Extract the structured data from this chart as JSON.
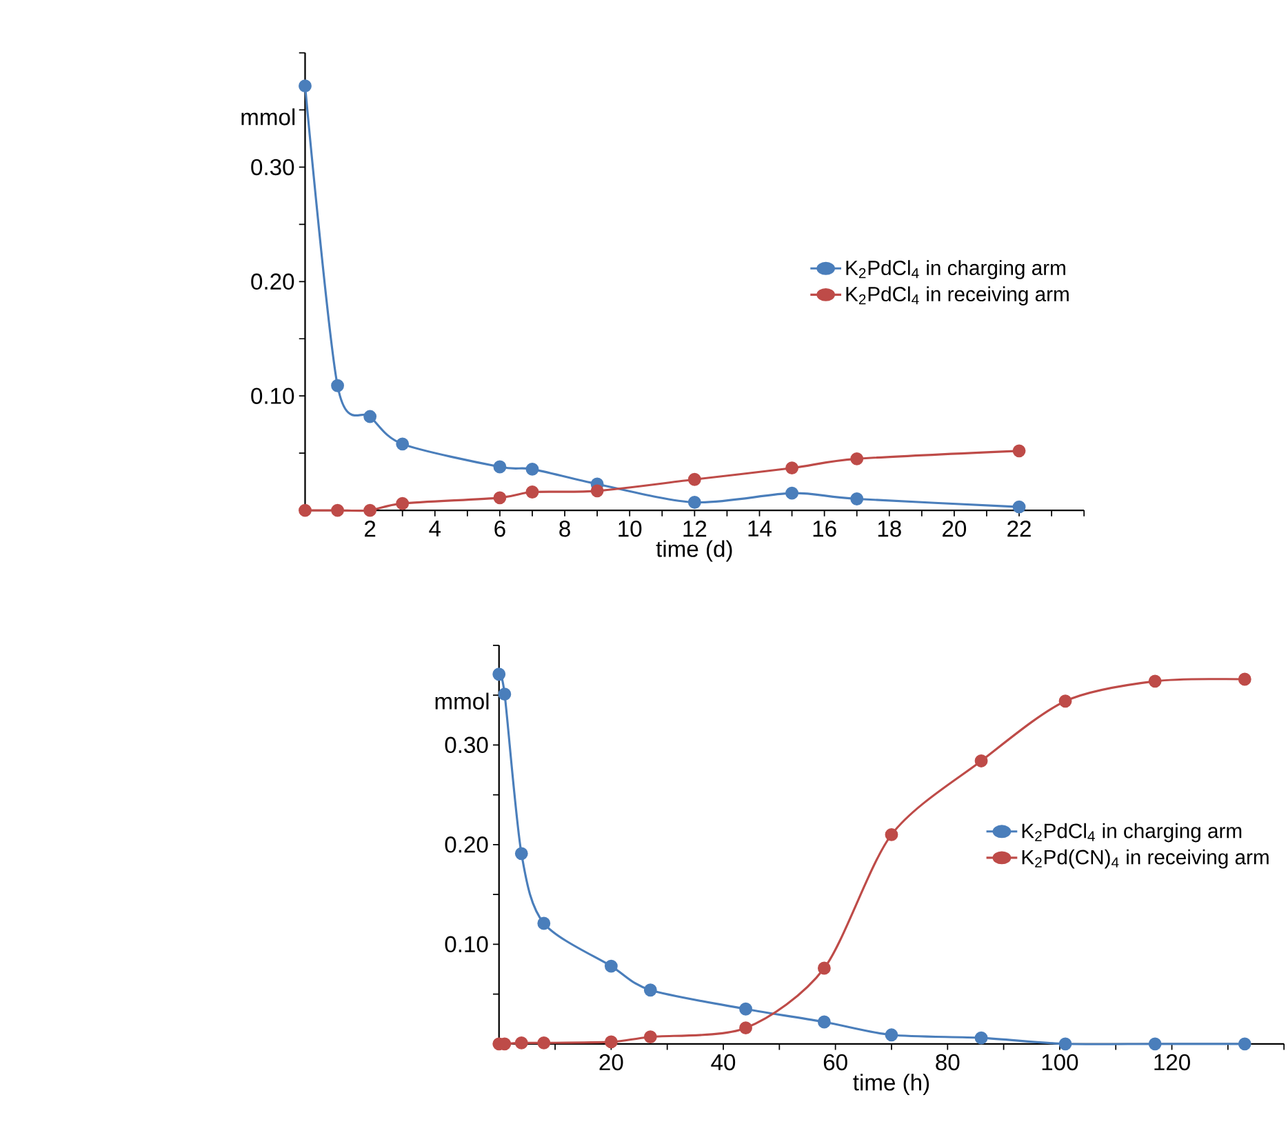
{
  "chart_data": [
    {
      "type": "line",
      "xlabel": "time (d)",
      "ylabel": "mmol",
      "marker": "circle",
      "line_style": "solid",
      "legend": "right",
      "xlim": [
        0,
        24
      ],
      "ylim": [
        0,
        0.4
      ],
      "xticks": [
        {
          "value": 0,
          "label": null
        },
        {
          "value": 1,
          "label": null
        },
        2,
        {
          "value": 3,
          "label": null
        },
        4,
        {
          "value": 5,
          "label": null
        },
        6,
        {
          "value": 7,
          "label": null
        },
        8,
        {
          "value": 9,
          "label": null
        },
        10,
        {
          "value": 11,
          "label": null
        },
        12,
        {
          "value": 13,
          "label": null
        },
        14,
        {
          "value": 15,
          "label": null
        },
        16,
        {
          "value": 17,
          "label": null
        },
        18,
        {
          "value": 19,
          "label": null
        },
        20,
        {
          "value": 21,
          "label": null
        },
        22,
        {
          "value": 23,
          "label": null
        },
        {
          "value": 24,
          "label": null
        }
      ],
      "yticks": [
        {
          "value": 0,
          "label": null
        },
        {
          "value": 0.05,
          "label": null
        },
        {
          "value": 0.1,
          "label": "0.10"
        },
        {
          "value": 0.15,
          "label": null
        },
        {
          "value": 0.2,
          "label": "0.20"
        },
        {
          "value": 0.25,
          "label": null
        },
        {
          "value": 0.3,
          "label": "0.30"
        },
        {
          "value": 0.35,
          "label": null
        },
        {
          "value": 0.4,
          "label": null
        }
      ],
      "x": [
        0,
        1,
        2,
        3,
        6,
        7,
        9,
        12,
        15,
        17,
        22
      ],
      "series": [
        {
          "name": "K$_{2}$PdCl$_{4}$ in charging arm",
          "color": "#4a7ebb",
          "values": [
            0.371,
            0.109,
            0.082,
            0.058,
            0.038,
            0.036,
            0.023,
            0.007,
            0.015,
            0.01,
            0.003
          ]
        },
        {
          "name": "K$_{2}$PdCl$_{4}$ in receiving arm",
          "color": "#be4b48",
          "values": [
            0,
            0,
            0,
            0.006,
            0.011,
            0.016,
            0.017,
            0.027,
            0.037,
            0.045,
            0.052
          ]
        }
      ]
    },
    {
      "type": "line",
      "xlabel": "time (h)",
      "ylabel": "mmol",
      "marker": "circle",
      "line_style": "solid",
      "legend": "right",
      "xlim": [
        0,
        140
      ],
      "ylim": [
        0,
        0.4
      ],
      "xticks": [
        {
          "value": 0,
          "label": null
        },
        {
          "value": 10,
          "label": null
        },
        20,
        {
          "value": 30,
          "label": null
        },
        40,
        {
          "value": 50,
          "label": null
        },
        60,
        {
          "value": 70,
          "label": null
        },
        80,
        {
          "value": 90,
          "label": null
        },
        100,
        {
          "value": 110,
          "label": null
        },
        120,
        {
          "value": 130,
          "label": null
        },
        {
          "value": 140,
          "label": null
        }
      ],
      "yticks": [
        {
          "value": 0,
          "label": null
        },
        {
          "value": 0.05,
          "label": null
        },
        {
          "value": 0.1,
          "label": "0.10"
        },
        {
          "value": 0.15,
          "label": null
        },
        {
          "value": 0.2,
          "label": "0.20"
        },
        {
          "value": 0.25,
          "label": null
        },
        {
          "value": 0.3,
          "label": "0.30"
        },
        {
          "value": 0.35,
          "label": null
        },
        {
          "value": 0.4,
          "label": null
        }
      ],
      "x": [
        0,
        1,
        4,
        8,
        20,
        27,
        44,
        58,
        70,
        86,
        101,
        117,
        133
      ],
      "series": [
        {
          "name": "K$_{2}$PdCl$_{4}$ in charging arm",
          "color": "#4a7ebb",
          "values": [
            0.371,
            0.351,
            0.191,
            0.121,
            0.078,
            0.054,
            0.035,
            0.022,
            0.009,
            0.006,
            0,
            0,
            0
          ]
        },
        {
          "name": "K$_{2}$Pd(CN)$_{4}$ in receiving arm",
          "color": "#be4b48",
          "values": [
            0,
            0,
            0.001,
            0.001,
            0.002,
            0.007,
            0.016,
            0.076,
            0.21,
            0.284,
            0.344,
            0.364,
            0.366
          ]
        }
      ]
    }
  ]
}
